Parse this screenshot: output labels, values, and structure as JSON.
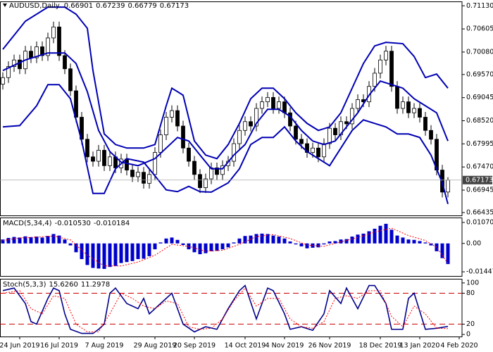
{
  "chart_data": [
    {
      "type": "candlestick",
      "title": "AUDUSD,Daily",
      "x": [
        0,
        1,
        2,
        3,
        4,
        5,
        6,
        7,
        8,
        9,
        10,
        11,
        12,
        13,
        14,
        15,
        16,
        17,
        18,
        19,
        20,
        21,
        22,
        23,
        24,
        25,
        26,
        27,
        28,
        29,
        30,
        31,
        32,
        33,
        34,
        35,
        36,
        37,
        38,
        39,
        40,
        41,
        42,
        43,
        44,
        45,
        46,
        47,
        48,
        49,
        50,
        51,
        52,
        53,
        54,
        55,
        56,
        57,
        58,
        59,
        60,
        61,
        62,
        63,
        64,
        65,
        66,
        67,
        68,
        69,
        70,
        71,
        72,
        73,
        74,
        75,
        76,
        77,
        78,
        79
      ],
      "open": [
        0.6935,
        0.695,
        0.6975,
        0.699,
        0.697,
        0.701,
        0.6995,
        0.702,
        0.7,
        0.704,
        0.7065,
        0.7,
        0.697,
        0.692,
        0.686,
        0.681,
        0.677,
        0.676,
        0.6785,
        0.675,
        0.677,
        0.6745,
        0.6765,
        0.674,
        0.6725,
        0.6735,
        0.671,
        0.673,
        0.678,
        0.682,
        0.686,
        0.6875,
        0.684,
        0.679,
        0.676,
        0.673,
        0.67,
        0.672,
        0.6745,
        0.673,
        0.675,
        0.676,
        0.68,
        0.683,
        0.685,
        0.684,
        0.688,
        0.6895,
        0.6905,
        0.688,
        0.6895,
        0.687,
        0.684,
        0.681,
        0.68,
        0.678,
        0.679,
        0.677,
        0.68,
        0.6835,
        0.682,
        0.685,
        0.6845,
        0.688,
        0.69,
        0.6895,
        0.693,
        0.696,
        0.699,
        0.701,
        0.693,
        0.688,
        0.6895,
        0.687,
        0.688,
        0.686,
        0.683,
        0.681,
        0.674,
        0.66901
      ],
      "high": [
        0.6962,
        0.6987,
        0.7002,
        0.7002,
        0.7022,
        0.7022,
        0.7032,
        0.7032,
        0.7052,
        0.7077,
        0.7077,
        0.7012,
        0.6982,
        0.6932,
        0.6872,
        0.6822,
        0.6782,
        0.6797,
        0.6797,
        0.6782,
        0.6782,
        0.6777,
        0.6777,
        0.6752,
        0.6747,
        0.6747,
        0.6742,
        0.6792,
        0.6832,
        0.6872,
        0.6887,
        0.6887,
        0.6852,
        0.6802,
        0.6772,
        0.6742,
        0.6732,
        0.6757,
        0.6757,
        0.6762,
        0.6772,
        0.6812,
        0.6842,
        0.6862,
        0.6862,
        0.6892,
        0.6907,
        0.6917,
        0.6917,
        0.6907,
        0.6907,
        0.6882,
        0.6852,
        0.6822,
        0.6812,
        0.6802,
        0.6802,
        0.6812,
        0.6847,
        0.6847,
        0.6862,
        0.6862,
        0.6892,
        0.6912,
        0.6912,
        0.6942,
        0.6972,
        0.7002,
        0.7022,
        0.7022,
        0.6942,
        0.6907,
        0.6907,
        0.6892,
        0.6892,
        0.6872,
        0.6842,
        0.6822,
        0.6752,
        0.67239
      ],
      "low": [
        0.6923,
        0.6938,
        0.6963,
        0.6958,
        0.6958,
        0.6983,
        0.6983,
        0.6988,
        0.6988,
        0.7028,
        0.6988,
        0.6958,
        0.6908,
        0.6848,
        0.6798,
        0.6758,
        0.6748,
        0.6748,
        0.6738,
        0.6738,
        0.6733,
        0.6733,
        0.6728,
        0.6713,
        0.6713,
        0.6698,
        0.6698,
        0.6718,
        0.6768,
        0.6808,
        0.6848,
        0.6828,
        0.6778,
        0.6748,
        0.6718,
        0.6688,
        0.6688,
        0.6708,
        0.6718,
        0.6718,
        0.6738,
        0.6748,
        0.6788,
        0.6818,
        0.6828,
        0.6828,
        0.6868,
        0.6883,
        0.6868,
        0.6868,
        0.6858,
        0.6828,
        0.6798,
        0.6788,
        0.6768,
        0.6768,
        0.6758,
        0.6758,
        0.6788,
        0.6808,
        0.6808,
        0.6833,
        0.6833,
        0.6868,
        0.6883,
        0.6883,
        0.6918,
        0.6948,
        0.6978,
        0.6918,
        0.6868,
        0.6868,
        0.6858,
        0.6858,
        0.6848,
        0.6818,
        0.6798,
        0.6728,
        0.6678,
        0.66779
      ],
      "close": [
        0.695,
        0.6975,
        0.699,
        0.697,
        0.701,
        0.6995,
        0.702,
        0.7,
        0.704,
        0.7065,
        0.7,
        0.697,
        0.692,
        0.686,
        0.681,
        0.677,
        0.676,
        0.6785,
        0.675,
        0.677,
        0.6745,
        0.6765,
        0.674,
        0.6725,
        0.6735,
        0.671,
        0.673,
        0.678,
        0.682,
        0.686,
        0.6875,
        0.684,
        0.679,
        0.676,
        0.673,
        0.67,
        0.672,
        0.6745,
        0.673,
        0.675,
        0.676,
        0.68,
        0.683,
        0.685,
        0.684,
        0.688,
        0.6895,
        0.6905,
        0.688,
        0.6895,
        0.687,
        0.684,
        0.681,
        0.68,
        0.678,
        0.679,
        0.677,
        0.68,
        0.6835,
        0.682,
        0.685,
        0.6845,
        0.688,
        0.69,
        0.6895,
        0.693,
        0.696,
        0.699,
        0.701,
        0.693,
        0.688,
        0.6895,
        0.687,
        0.688,
        0.686,
        0.683,
        0.681,
        0.674,
        0.669,
        0.67173
      ],
      "lines": [
        {
          "color": "#0000b4",
          "x": [
            0,
            4,
            8,
            11,
            13,
            15,
            16,
            18,
            20,
            22,
            25,
            27,
            29,
            30,
            32,
            34,
            36,
            38,
            40,
            42,
            44,
            46,
            48,
            50,
            52,
            54,
            56,
            58,
            60,
            62,
            64,
            66,
            68,
            71,
            73,
            75,
            77,
            79
          ],
          "values": [
            0.7014,
            0.7078,
            0.711,
            0.711,
            0.7094,
            0.7062,
            0.6966,
            0.6822,
            0.6798,
            0.679,
            0.679,
            0.6798,
            0.6886,
            0.6926,
            0.691,
            0.6806,
            0.6774,
            0.6766,
            0.6798,
            0.6846,
            0.6902,
            0.6926,
            0.6926,
            0.6902,
            0.687,
            0.6846,
            0.683,
            0.6838,
            0.687,
            0.6926,
            0.6982,
            0.7022,
            0.703,
            0.7027,
            0.6998,
            0.695,
            0.6958,
            0.6926
          ]
        },
        {
          "color": "#0000b4",
          "x": [
            0,
            4,
            8,
            11,
            13,
            15,
            17,
            19,
            21,
            24,
            27,
            29,
            31,
            33,
            35,
            37,
            39,
            41,
            43,
            45,
            47,
            49,
            51,
            53,
            55,
            57,
            59,
            61,
            63,
            65,
            67,
            69,
            71,
            73,
            75,
            77,
            79
          ],
          "values": [
            0.6966,
            0.699,
            0.7006,
            0.7006,
            0.6982,
            0.6918,
            0.683,
            0.6782,
            0.6758,
            0.675,
            0.6766,
            0.679,
            0.6814,
            0.6806,
            0.6774,
            0.6743,
            0.6743,
            0.6774,
            0.6798,
            0.6846,
            0.6878,
            0.6878,
            0.6862,
            0.683,
            0.6806,
            0.6798,
            0.6806,
            0.6838,
            0.687,
            0.691,
            0.6942,
            0.6934,
            0.6926,
            0.6902,
            0.6886,
            0.687,
            0.6806
          ]
        },
        {
          "color": "#0000b4",
          "x": [
            0,
            3,
            6,
            8,
            10,
            12,
            14,
            16,
            18,
            20,
            22,
            25,
            27,
            29,
            31,
            33,
            35,
            37,
            40,
            42,
            44,
            46,
            48,
            50,
            52,
            54,
            56,
            58,
            60,
            62,
            64,
            66,
            68,
            70,
            72,
            74,
            76,
            78,
            79
          ],
          "values": [
            0.6838,
            0.6841,
            0.6886,
            0.6934,
            0.6934,
            0.6902,
            0.6806,
            0.6687,
            0.6687,
            0.6743,
            0.6766,
            0.6758,
            0.6727,
            0.6695,
            0.6691,
            0.6703,
            0.6691,
            0.669,
            0.6711,
            0.6743,
            0.6798,
            0.6814,
            0.6814,
            0.6838,
            0.6806,
            0.6782,
            0.6766,
            0.675,
            0.679,
            0.683,
            0.6854,
            0.6846,
            0.6838,
            0.6822,
            0.6822,
            0.6814,
            0.6774,
            0.6711,
            0.6663
          ]
        }
      ],
      "xlim": [
        -0.5,
        81.5
      ],
      "ylim": [
        0.6637,
        0.7123
      ],
      "yticks": [
        {
          "value": 0.7113,
          "label": "0.71130"
        },
        0.70605,
        {
          "value": 0.7008,
          "label": "0.70080"
        },
        {
          "value": 0.6957,
          "label": "0.69570"
        },
        0.69045,
        {
          "value": 0.6852,
          "label": "0.68520"
        },
        0.67995,
        {
          "value": 0.6747,
          "label": "0.67470"
        },
        0.66945,
        0.66435
      ]
    },
    {
      "type": "bar",
      "title": "MACD(5,34,4)",
      "series": [
        {
          "type": "bar",
          "color": "#0000cc",
          "last_label": "-0.010530",
          "values": [
            0.002,
            0.0028,
            0.0033,
            0.003,
            0.0036,
            0.0032,
            0.0035,
            0.003,
            0.0038,
            0.0048,
            0.004,
            0.002,
            -0.001,
            -0.0045,
            -0.008,
            -0.011,
            -0.0125,
            -0.0128,
            -0.013,
            -0.012,
            -0.0115,
            -0.01,
            -0.0095,
            -0.009,
            -0.008,
            -0.0078,
            -0.0065,
            -0.003,
            0.0005,
            0.0025,
            0.003,
            0.0018,
            -0.0008,
            -0.003,
            -0.0045,
            -0.0055,
            -0.005,
            -0.004,
            -0.0038,
            -0.003,
            -0.002,
            0.0005,
            0.0025,
            0.0038,
            0.004,
            0.0048,
            0.005,
            0.0048,
            0.004,
            0.0035,
            0.0025,
            0.001,
            -0.0005,
            -0.0015,
            -0.0025,
            -0.0022,
            -0.002,
            -0.0005,
            0.001,
            0.0012,
            0.002,
            0.0022,
            0.0035,
            0.0045,
            0.005,
            0.0062,
            0.0075,
            0.009,
            0.01,
            0.007,
            0.004,
            0.003,
            0.002,
            0.0018,
            0.0012,
            0.0005,
            -0.001,
            -0.004,
            -0.0075,
            -0.01053
          ]
        },
        {
          "type": "line",
          "color": "#ff0000",
          "dash": true,
          "x": [
            0,
            3,
            6,
            9,
            12,
            15,
            18,
            21,
            24,
            27,
            30,
            33,
            36,
            39,
            42,
            45,
            48,
            51,
            54,
            57,
            60,
            63,
            66,
            69,
            72,
            75,
            77,
            79
          ],
          "values": [
            0.0015,
            0.0028,
            0.0032,
            0.0038,
            0.0018,
            -0.006,
            -0.0115,
            -0.0115,
            -0.0095,
            -0.006,
            -0.0005,
            -0.0015,
            -0.004,
            -0.0035,
            -0.0005,
            0.0035,
            0.0045,
            0.0025,
            -0.0008,
            -0.0015,
            0.0008,
            0.003,
            0.0058,
            0.0078,
            0.004,
            0.0015,
            -0.002,
            -0.010184
          ]
        }
      ],
      "xlim": [
        -0.5,
        81.5
      ],
      "ylim": [
        -0.0166,
        0.0132
      ],
      "yticks": [
        0.010707,
        {
          "value": 0,
          "label": "0.00"
        },
        -0.014477
      ]
    },
    {
      "type": "line",
      "title": "Stoch(5,3,3)",
      "series": [
        {
          "color": "#00008b",
          "last_label": "15.6260",
          "x": [
            0,
            2,
            4,
            5,
            6,
            8,
            9,
            10,
            11,
            12,
            14,
            16,
            17,
            18,
            19,
            20,
            22,
            24,
            25,
            26,
            28,
            30,
            32,
            34,
            36,
            38,
            40,
            42,
            43,
            45,
            47,
            48,
            50,
            51,
            53,
            55,
            57,
            58,
            60,
            61,
            63,
            65,
            66,
            68,
            69,
            71,
            72,
            73,
            75,
            77,
            79
          ],
          "values": [
            85,
            90,
            60,
            25,
            20,
            70,
            90,
            85,
            40,
            10,
            2,
            2,
            10,
            20,
            80,
            90,
            60,
            50,
            70,
            40,
            60,
            80,
            20,
            5,
            15,
            10,
            50,
            85,
            95,
            30,
            90,
            85,
            40,
            10,
            15,
            8,
            40,
            85,
            60,
            90,
            50,
            95,
            95,
            60,
            10,
            10,
            70,
            80,
            10,
            12,
            15.626
          ]
        },
        {
          "color": "#ff0000",
          "dash": true,
          "x": [
            0,
            3,
            5,
            7,
            9,
            11,
            13,
            15,
            17,
            19,
            21,
            23,
            25,
            27,
            29,
            31,
            33,
            35,
            37,
            39,
            41,
            43,
            45,
            47,
            49,
            51,
            53,
            55,
            57,
            59,
            61,
            63,
            65,
            67,
            69,
            71,
            73,
            75,
            77,
            79
          ],
          "values": [
            80,
            85,
            50,
            40,
            75,
            70,
            20,
            5,
            5,
            40,
            80,
            70,
            55,
            50,
            65,
            60,
            15,
            10,
            12,
            30,
            65,
            90,
            55,
            70,
            70,
            30,
            15,
            12,
            25,
            70,
            75,
            70,
            85,
            85,
            35,
            15,
            55,
            40,
            12,
            11.2978
          ]
        }
      ],
      "levels": [
        20,
        80
      ],
      "level_color": "#cc0000",
      "xlim": [
        -0.5,
        81.5
      ],
      "ylim": [
        -4,
        108
      ],
      "yticks": [
        100,
        80,
        20,
        0
      ],
      "xticks": [
        {
          "value": 3,
          "label": "24 Jun 2019"
        },
        {
          "value": 10,
          "label": "16 Jul 2019"
        },
        {
          "value": 18,
          "label": "7 Aug 2019"
        },
        {
          "value": 27,
          "label": "29 Aug 2019"
        },
        {
          "value": 34,
          "label": "20 Sep 2019"
        },
        {
          "value": 43,
          "label": "14 Oct 2019"
        },
        {
          "value": 50,
          "label": "4 Nov 2019"
        },
        {
          "value": 58,
          "label": "26 Nov 2019"
        },
        {
          "value": 67,
          "label": "18 Dec 2019"
        },
        {
          "value": 74,
          "label": "13 Jan 2020"
        },
        {
          "value": 81,
          "label": "4 Feb 2020"
        }
      ]
    }
  ]
}
